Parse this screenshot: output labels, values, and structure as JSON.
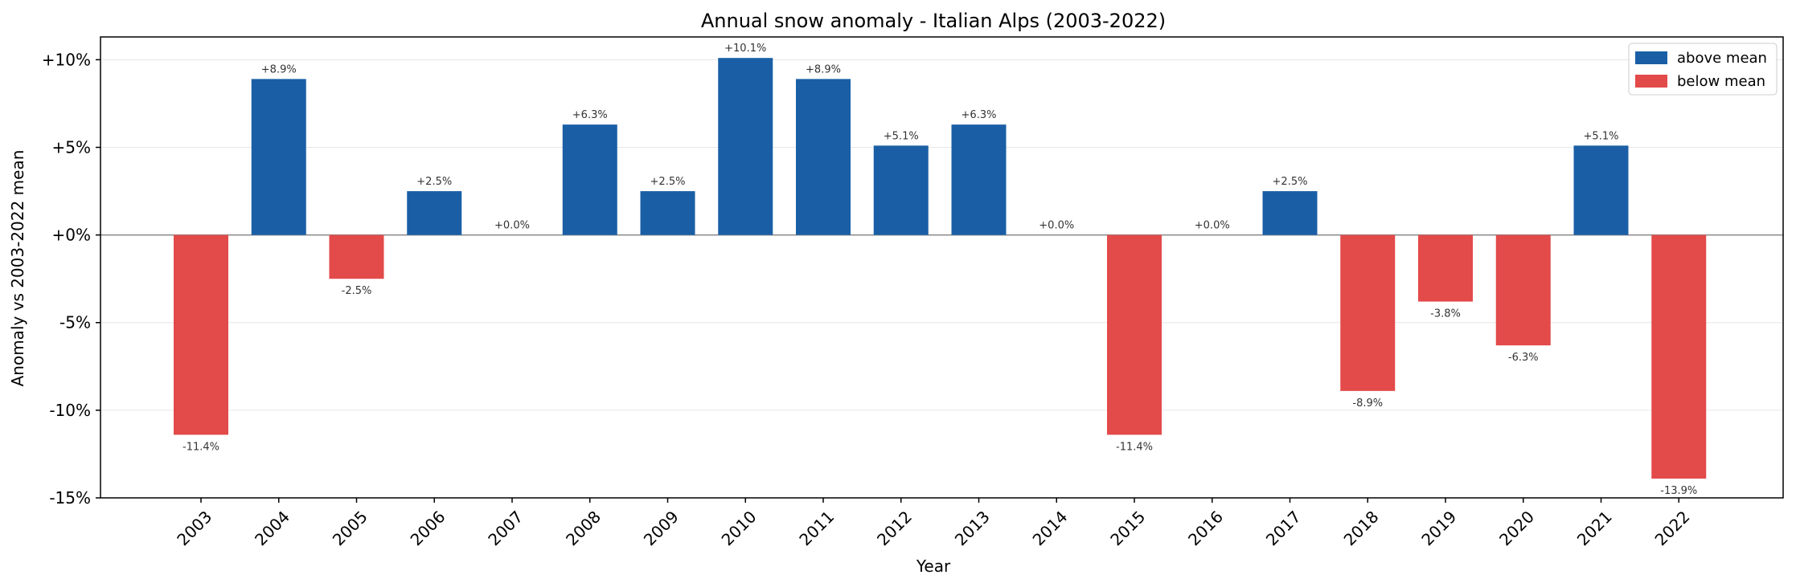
{
  "chart_data": {
    "type": "bar",
    "title": "Annual snow anomaly - Italian Alps (2003-2022)",
    "xlabel": "Year",
    "ylabel": "Anomaly vs 2003-2022 mean",
    "categories": [
      "2003",
      "2004",
      "2005",
      "2006",
      "2007",
      "2008",
      "2009",
      "2010",
      "2011",
      "2012",
      "2013",
      "2014",
      "2015",
      "2016",
      "2017",
      "2018",
      "2019",
      "2020",
      "2021",
      "2022"
    ],
    "values": [
      -11.4,
      8.9,
      -2.5,
      2.5,
      0.0,
      6.3,
      2.5,
      10.1,
      8.9,
      5.1,
      6.3,
      0.0,
      -11.4,
      0.0,
      2.5,
      -8.9,
      -3.8,
      -6.3,
      5.1,
      -13.9
    ],
    "value_labels": [
      "-11.4%",
      "+8.9%",
      "-2.5%",
      "+2.5%",
      "+0.0%",
      "+6.3%",
      "+2.5%",
      "+10.1%",
      "+8.9%",
      "+5.1%",
      "+6.3%",
      "+0.0%",
      "-11.4%",
      "+0.0%",
      "+2.5%",
      "-8.9%",
      "-3.8%",
      "-6.3%",
      "+5.1%",
      "-13.9%"
    ],
    "ylim": [
      -15,
      11.3
    ],
    "yticks": [
      10,
      5,
      0,
      -5,
      -10,
      -15
    ],
    "ytick_labels": [
      "+10%",
      "+5%",
      "+0%",
      "-5%",
      "-10%",
      "-15%"
    ],
    "legend": {
      "placement": "top-right",
      "entries": [
        {
          "label": "above mean",
          "color": "#1a5fa6"
        },
        {
          "label": "below mean",
          "color": "#e34a4a"
        }
      ]
    },
    "colors": {
      "positive": "#1a5fa6",
      "negative": "#e34a4a",
      "zero_line": "#888888",
      "grid": "#e6e6e6"
    },
    "grid": "horizontal"
  }
}
